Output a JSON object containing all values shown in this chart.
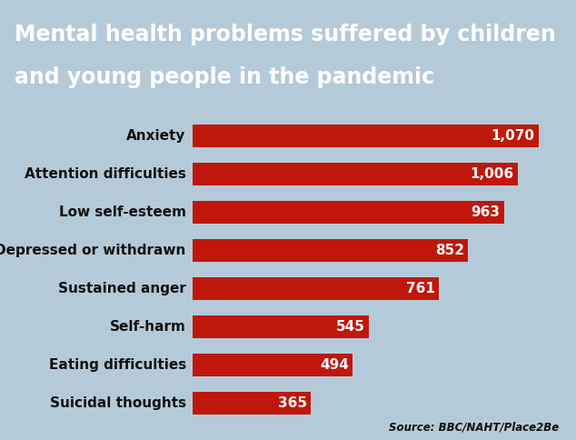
{
  "title_line1": "Mental health problems suffered by children",
  "title_line2": "and young people in the pandemic",
  "title_bg_color": "#1e3a6e",
  "title_text_color": "#ffffff",
  "categories": [
    "Anxiety",
    "Attention difficulties",
    "Low self-esteem",
    "Depressed or withdrawn",
    "Sustained anger",
    "Self-harm",
    "Eating difficulties",
    "Suicidal thoughts"
  ],
  "values": [
    1070,
    1006,
    963,
    852,
    761,
    545,
    494,
    365
  ],
  "bar_color": "#c0170c",
  "label_color": "#ffffff",
  "category_text_color": "#111111",
  "bg_color_top": "#adc4d4",
  "bg_color": "#b5cad8",
  "source_text": "Source: BBC/NAHT/Place2Be",
  "xlim": [
    0,
    1150
  ],
  "title_fontsize": 17,
  "bar_label_fontsize": 11,
  "cat_label_fontsize": 11
}
